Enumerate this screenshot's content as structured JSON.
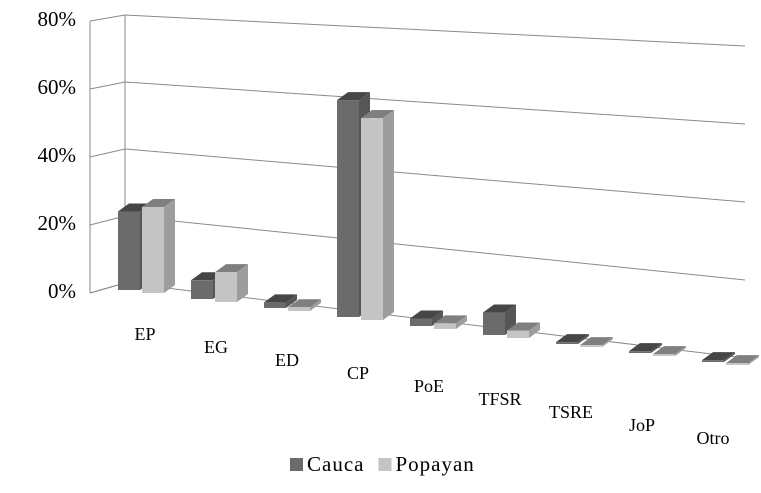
{
  "chart_data": {
    "type": "bar3d",
    "categories": [
      "EP",
      "EG",
      "ED",
      "CP",
      "PoE",
      "TFSR",
      "TSRE",
      "JoP",
      "Otro"
    ],
    "series": [
      {
        "name": "Cauca",
        "color": "#6b6b6b",
        "values": [
          21,
          5,
          1.5,
          58,
          2,
          6,
          0.5,
          0.5,
          0.5
        ]
      },
      {
        "name": "Popayan",
        "color": "#c4c4c4",
        "values": [
          23,
          8,
          1,
          54,
          1.5,
          2,
          0.5,
          0.5,
          0.5
        ]
      }
    ],
    "ylim": [
      0,
      80
    ],
    "yticks": [
      {
        "value": 0,
        "label": "0%"
      },
      {
        "value": 20,
        "label": "20%"
      },
      {
        "value": 40,
        "label": "40%"
      },
      {
        "value": 60,
        "label": "60%"
      },
      {
        "value": 80,
        "label": "80%"
      }
    ],
    "grid": true,
    "legend": "bottom"
  }
}
